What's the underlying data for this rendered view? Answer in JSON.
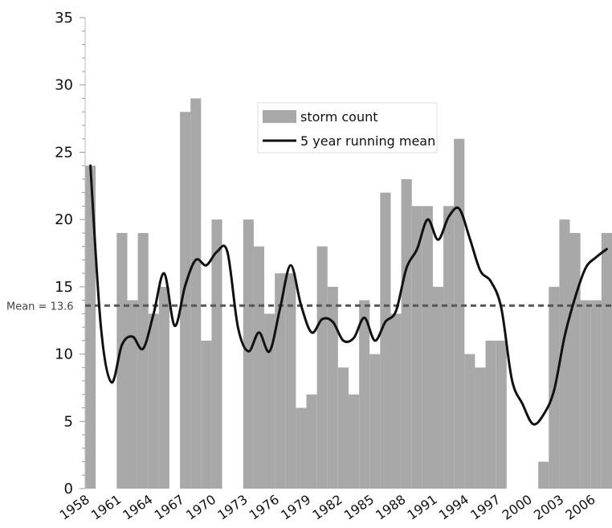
{
  "chart_data": {
    "type": "bar",
    "x": [
      1958,
      1959,
      1960,
      1961,
      1962,
      1963,
      1964,
      1965,
      1966,
      1967,
      1968,
      1969,
      1970,
      1971,
      1972,
      1973,
      1974,
      1975,
      1976,
      1977,
      1978,
      1979,
      1980,
      1981,
      1982,
      1983,
      1984,
      1985,
      1986,
      1987,
      1988,
      1989,
      1990,
      1991,
      1992,
      1993,
      1994,
      1995,
      1996,
      1997,
      1998,
      1999,
      2000,
      2001,
      2002,
      2003,
      2004,
      2005,
      2006,
      2007
    ],
    "x_tick_labels": [
      "1958",
      "1961",
      "1964",
      "1967",
      "1970",
      "1973",
      "1976",
      "1979",
      "1982",
      "1985",
      "1988",
      "1991",
      "1994",
      "1997",
      "2000",
      "2003",
      "2006"
    ],
    "y_ticks": [
      "0",
      "5",
      "10",
      "15",
      "20",
      "25",
      "30",
      "35"
    ],
    "ylim": [
      0,
      35
    ],
    "xlabel": "",
    "ylabel": "",
    "grid": false,
    "legend_position": "top-center",
    "series": [
      {
        "name": "storm count",
        "kind": "bar",
        "color": "#a8a8a8",
        "values": [
          24,
          0,
          0,
          19,
          14,
          19,
          13,
          15,
          0,
          28,
          29,
          11,
          20,
          0,
          0,
          20,
          18,
          13,
          16,
          16,
          6,
          7,
          18,
          15,
          9,
          7,
          14,
          10,
          22,
          13,
          23,
          21,
          21,
          15,
          21,
          26,
          10,
          9,
          11,
          11,
          0,
          0,
          0,
          2,
          15,
          20,
          19,
          14,
          14,
          19
        ]
      },
      {
        "name": "5 year running mean",
        "kind": "line",
        "color": "#111111",
        "values": [
          24.0,
          12.0,
          7.9,
          10.7,
          11.3,
          10.4,
          13.0,
          16.0,
          12.1,
          15.1,
          17.0,
          16.6,
          17.6,
          17.6,
          12.0,
          10.2,
          11.6,
          10.2,
          13.4,
          16.6,
          13.6,
          11.6,
          12.6,
          12.4,
          11.0,
          11.2,
          12.7,
          11.0,
          12.4,
          13.2,
          16.4,
          17.8,
          20.0,
          18.5,
          20.2,
          20.8,
          18.6,
          16.2,
          15.4,
          13.4,
          8.1,
          6.3,
          4.8,
          5.5,
          7.3,
          11.3,
          14.2,
          16.4,
          17.2,
          17.8
        ]
      }
    ],
    "reference_line": {
      "label": "Mean = 13.6",
      "value": 13.6,
      "color": "#555555"
    }
  }
}
